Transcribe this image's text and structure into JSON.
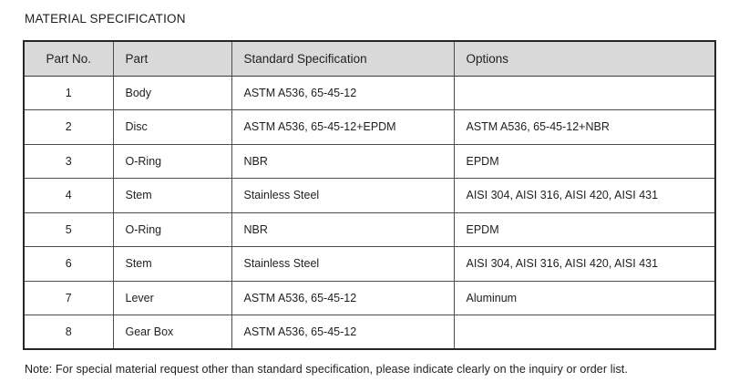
{
  "title": "MATERIAL SPECIFICATION",
  "table": {
    "headers": [
      "Part No.",
      "Part",
      "Standard Specification",
      "Options"
    ],
    "rows": [
      {
        "part_no": "1",
        "part": "Body",
        "standard_specification": "ASTM A536, 65-45-12",
        "options": ""
      },
      {
        "part_no": "2",
        "part": "Disc",
        "standard_specification": "ASTM A536, 65-45-12+EPDM",
        "options": "ASTM A536, 65-45-12+NBR"
      },
      {
        "part_no": "3",
        "part": "O-Ring",
        "standard_specification": "NBR",
        "options": "EPDM"
      },
      {
        "part_no": "4",
        "part": "Stem",
        "standard_specification": "Stainless Steel",
        "options": "AISI 304, AISI 316, AISI 420, AISI 431"
      },
      {
        "part_no": "5",
        "part": "O-Ring",
        "standard_specification": "NBR",
        "options": "EPDM"
      },
      {
        "part_no": "6",
        "part": "Stem",
        "standard_specification": "Stainless Steel",
        "options": "AISI 304, AISI 316, AISI 420, AISI 431"
      },
      {
        "part_no": "7",
        "part": "Lever",
        "standard_specification": "ASTM A536, 65-45-12",
        "options": "Aluminum"
      },
      {
        "part_no": "8",
        "part": "Gear Box",
        "standard_specification": "ASTM A536, 65-45-12",
        "options": ""
      }
    ]
  },
  "note": "Note: For special material request other than standard specification, please indicate clearly on the inquiry or order list.",
  "colors": {
    "header_bg": "#d9d9d9",
    "border_outer": "#262626",
    "border_inner": "#4d4d4d",
    "text": "#1f1f1f",
    "page_bg": "#ffffff"
  }
}
